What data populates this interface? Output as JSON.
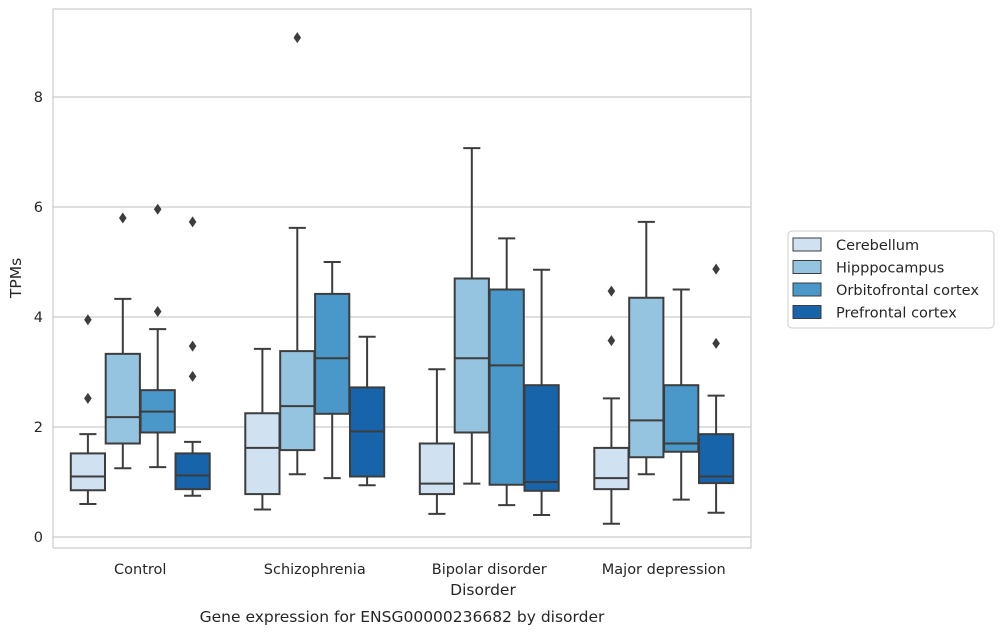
{
  "caption": "Gene expression for ENSG00000236682 by disorder",
  "colors": {
    "Cerebellum": "#d0e1f2",
    "Hipppocampus": "#94c4df",
    "Orbitofrontal cortex": "#4a98c9",
    "Prefrontal cortex": "#1764ab",
    "box_edge": "#3d3d3d",
    "grid": "#cccccc"
  },
  "chart_data": {
    "type": "boxplot",
    "title": "",
    "xlabel": "Disorder",
    "ylabel": "TPMs",
    "ylim": [
      -0.2,
      9.6
    ],
    "yticks": [
      0,
      2,
      4,
      6,
      8
    ],
    "categories": [
      "Control",
      "Schizophrenia",
      "Bipolar disorder",
      "Major depression"
    ],
    "grid": "horizontal",
    "legend_position": "right",
    "series": [
      {
        "name": "Cerebellum",
        "boxes": [
          {
            "whislo": 0.6,
            "q1": 0.85,
            "med": 1.1,
            "q3": 1.52,
            "whishi": 1.87,
            "fliers": [
              2.52,
              3.95
            ]
          },
          {
            "whislo": 0.5,
            "q1": 0.78,
            "med": 1.62,
            "q3": 2.25,
            "whishi": 3.42,
            "fliers": []
          },
          {
            "whislo": 0.42,
            "q1": 0.78,
            "med": 0.97,
            "q3": 1.7,
            "whishi": 3.05,
            "fliers": []
          },
          {
            "whislo": 0.24,
            "q1": 0.87,
            "med": 1.07,
            "q3": 1.62,
            "whishi": 2.52,
            "fliers": [
              3.57,
              4.47
            ]
          }
        ]
      },
      {
        "name": "Hipppocampus",
        "boxes": [
          {
            "whislo": 1.25,
            "q1": 1.7,
            "med": 2.18,
            "q3": 3.33,
            "whishi": 4.33,
            "fliers": [
              5.8
            ]
          },
          {
            "whislo": 1.14,
            "q1": 1.58,
            "med": 2.38,
            "q3": 3.38,
            "whishi": 5.62,
            "fliers": [
              9.08
            ]
          },
          {
            "whislo": 0.97,
            "q1": 1.9,
            "med": 3.25,
            "q3": 4.7,
            "whishi": 7.07,
            "fliers": []
          },
          {
            "whislo": 1.14,
            "q1": 1.45,
            "med": 2.12,
            "q3": 4.35,
            "whishi": 5.73,
            "fliers": []
          }
        ]
      },
      {
        "name": "Orbitofrontal cortex",
        "boxes": [
          {
            "whislo": 1.27,
            "q1": 1.9,
            "med": 2.28,
            "q3": 2.67,
            "whishi": 3.78,
            "fliers": [
              4.1,
              5.96
            ]
          },
          {
            "whislo": 1.07,
            "q1": 2.24,
            "med": 3.25,
            "q3": 4.42,
            "whishi": 5.0,
            "fliers": []
          },
          {
            "whislo": 0.58,
            "q1": 0.95,
            "med": 3.12,
            "q3": 4.5,
            "whishi": 5.43,
            "fliers": []
          },
          {
            "whislo": 0.68,
            "q1": 1.55,
            "med": 1.7,
            "q3": 2.76,
            "whishi": 4.5,
            "fliers": []
          }
        ]
      },
      {
        "name": "Prefrontal cortex",
        "boxes": [
          {
            "whislo": 0.75,
            "q1": 0.87,
            "med": 1.12,
            "q3": 1.52,
            "whishi": 1.73,
            "fliers": [
              2.92,
              3.47,
              5.73
            ]
          },
          {
            "whislo": 0.94,
            "q1": 1.1,
            "med": 1.92,
            "q3": 2.72,
            "whishi": 3.64,
            "fliers": []
          },
          {
            "whislo": 0.4,
            "q1": 0.84,
            "med": 1.0,
            "q3": 2.76,
            "whishi": 4.86,
            "fliers": []
          },
          {
            "whislo": 0.44,
            "q1": 0.98,
            "med": 1.1,
            "q3": 1.87,
            "whishi": 2.57,
            "fliers": [
              3.52,
              4.87
            ]
          }
        ]
      }
    ]
  }
}
